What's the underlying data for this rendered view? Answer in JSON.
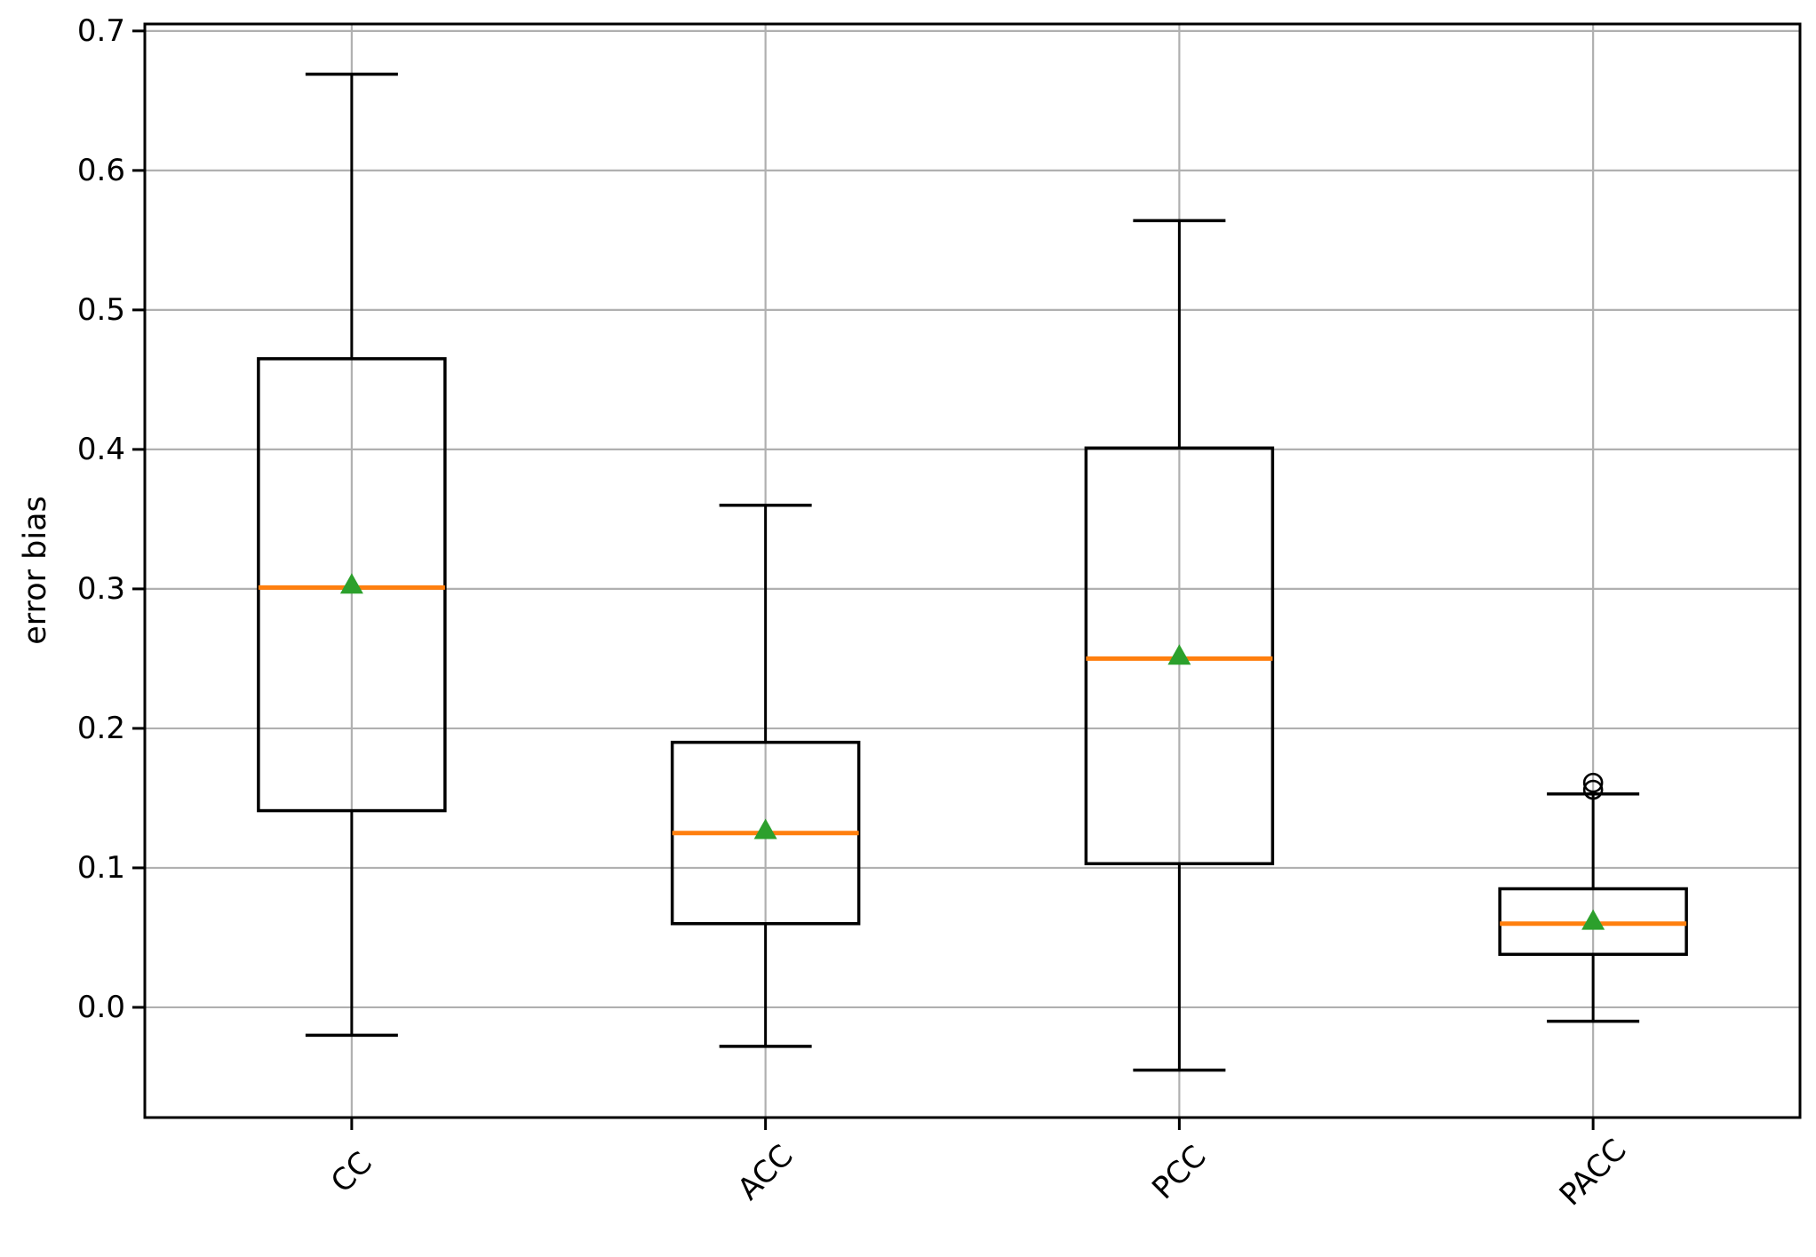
{
  "figure": {
    "background": "#ffffff"
  },
  "chart_data": {
    "type": "boxplot",
    "title": "",
    "xlabel": "",
    "ylabel": "error bias",
    "categories": [
      "CC",
      "ACC",
      "PCC",
      "PACC"
    ],
    "y_ticks": [
      0.0,
      0.1,
      0.2,
      0.3,
      0.4,
      0.5,
      0.6,
      0.7
    ],
    "y_tick_labels": [
      "0.0",
      "0.1",
      "0.2",
      "0.3",
      "0.4",
      "0.5",
      "0.6",
      "0.7"
    ],
    "ylim": [
      -0.079,
      0.705
    ],
    "grid": true,
    "legend": "none",
    "series": [
      {
        "label": "CC",
        "whisker_low": -0.02,
        "q1": 0.141,
        "median": 0.301,
        "mean": 0.303,
        "q3": 0.465,
        "whisker_high": 0.669,
        "outliers": []
      },
      {
        "label": "ACC",
        "whisker_low": -0.028,
        "q1": 0.06,
        "median": 0.125,
        "mean": 0.127,
        "q3": 0.19,
        "whisker_high": 0.36,
        "outliers": []
      },
      {
        "label": "PCC",
        "whisker_low": -0.045,
        "q1": 0.103,
        "median": 0.25,
        "mean": 0.252,
        "q3": 0.401,
        "whisker_high": 0.564,
        "outliers": []
      },
      {
        "label": "PACC",
        "whisker_low": -0.01,
        "q1": 0.038,
        "median": 0.06,
        "mean": 0.062,
        "q3": 0.085,
        "whisker_high": 0.153,
        "outliers": [
          0.156,
          0.161
        ]
      }
    ],
    "colors": {
      "median_line": "#ff7f0e",
      "mean_marker": "#2ca02c",
      "box_edge": "#000000",
      "whisker": "#000000",
      "outlier_edge": "#000000",
      "grid_line": "#b0b0b0",
      "spine": "#000000",
      "tick_label": "#000000"
    }
  }
}
